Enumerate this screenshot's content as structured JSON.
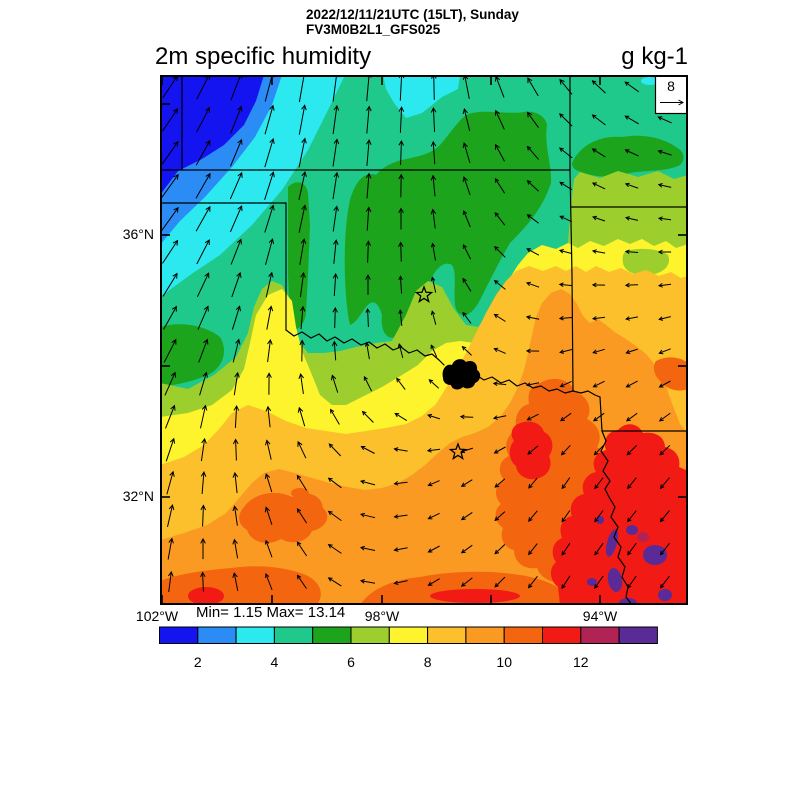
{
  "header": {
    "datetime_line": "2022/12/11/21UTC (15LT), Sunday",
    "model_line": "FV3M0B2L1_GFS025"
  },
  "titles": {
    "variable": "2m specific humidity",
    "units": "g kg-1"
  },
  "stats": {
    "minmax": "Min= 1.15 Max= 13.14"
  },
  "vector_legend": {
    "ref_label": "8"
  },
  "y_axis": {
    "labels": [
      "36°N",
      "32°N"
    ]
  },
  "x_axis": {
    "labels": [
      "102°W",
      "98°W",
      "94°W"
    ]
  },
  "colorbar": {
    "tick_labels": [
      "2",
      "4",
      "6",
      "8",
      "10",
      "12"
    ],
    "colors": [
      "#1414f0",
      "#2b8cf5",
      "#2ce9f0",
      "#1fc98b",
      "#1da41d",
      "#9ccf2d",
      "#fdf42d",
      "#fbc02b",
      "#fa9a23",
      "#f3660f",
      "#f21a15",
      "#b12355",
      "#5a2b97"
    ]
  },
  "chart_data": {
    "type": "heatmap",
    "title": "2m specific humidity",
    "units": "g kg-1",
    "valid_time": "2022/12/11/21UTC (15LT), Sunday",
    "model": "FV3M0B2L1_GFS025",
    "min": 1.15,
    "max": 13.14,
    "colorbar_levels": [
      2,
      4,
      6,
      8,
      10,
      12
    ],
    "colorbar_cell_count": 13,
    "lat_tick_labels": [
      "36°N",
      "32°N"
    ],
    "lon_tick_labels": [
      "102°W",
      "98°W",
      "94°W"
    ],
    "field_pattern": "dry (1-3 g/kg) northwest corner, 4-6 g/kg across Oklahoma, 7-9 g/kg central Texas, 10-13+ g/kg southeast toward Louisiana",
    "wind_reference_value": 8,
    "wind_field": {
      "angles_grid": [
        [
          55,
          80,
          88,
          125,
          155
        ],
        [
          52,
          76,
          92,
          150,
          175
        ],
        [
          60,
          85,
          100,
          190,
          200
        ],
        [
          70,
          115,
          200,
          235,
          228
        ],
        [
          82,
          118,
          210,
          238,
          232
        ]
      ],
      "lengths_grid": [
        [
          26,
          31,
          27,
          20,
          15
        ],
        [
          28,
          29,
          20,
          13,
          12
        ],
        [
          26,
          22,
          13,
          12,
          12
        ],
        [
          24,
          18,
          12,
          13,
          14
        ],
        [
          20,
          16,
          13,
          15,
          15
        ]
      ]
    }
  }
}
